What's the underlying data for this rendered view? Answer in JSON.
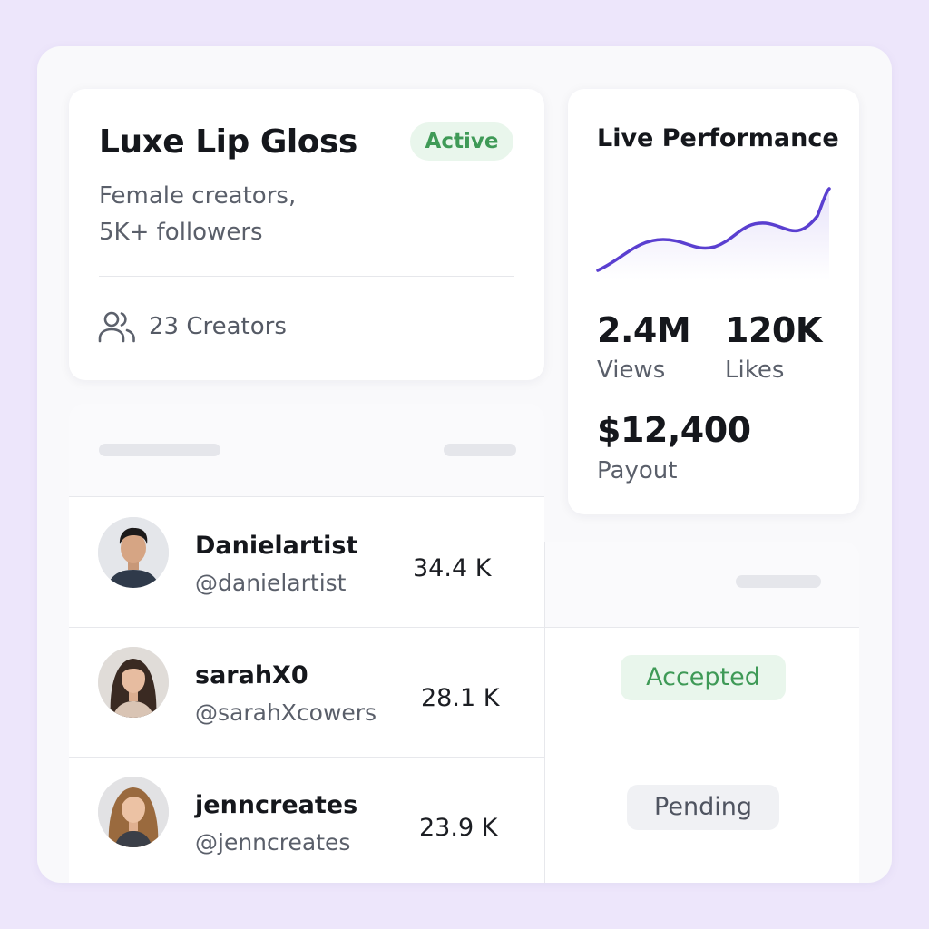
{
  "campaign": {
    "title": "Luxe Lip Gloss",
    "status": "Active",
    "target_line1": "Female creators,",
    "target_line2": "5K+ followers",
    "creators_count": "23 Creators",
    "creators_icon": "users-icon"
  },
  "performance": {
    "title": "Live Performance",
    "views_value": "2.4M",
    "views_label": "Views",
    "likes_value": "120K",
    "likes_label": "Likes",
    "payout_value": "$12,400",
    "payout_label": "Payout"
  },
  "creators": [
    {
      "name": "Danielartist",
      "handle": "@danielartist",
      "followers": "34.4 K",
      "status": ""
    },
    {
      "name": "sarahX0",
      "handle": "@sarahXcowers",
      "followers": "28.1 K",
      "status": "Accepted"
    },
    {
      "name": "jenncreates",
      "handle": "@jenncreates",
      "followers": "23.9 K",
      "status": "Pending"
    }
  ],
  "colors": {
    "accent": "#5a3fd0",
    "success": "#3f9a57",
    "success_bg": "#e9f6ec",
    "background": "#ede6fb"
  }
}
